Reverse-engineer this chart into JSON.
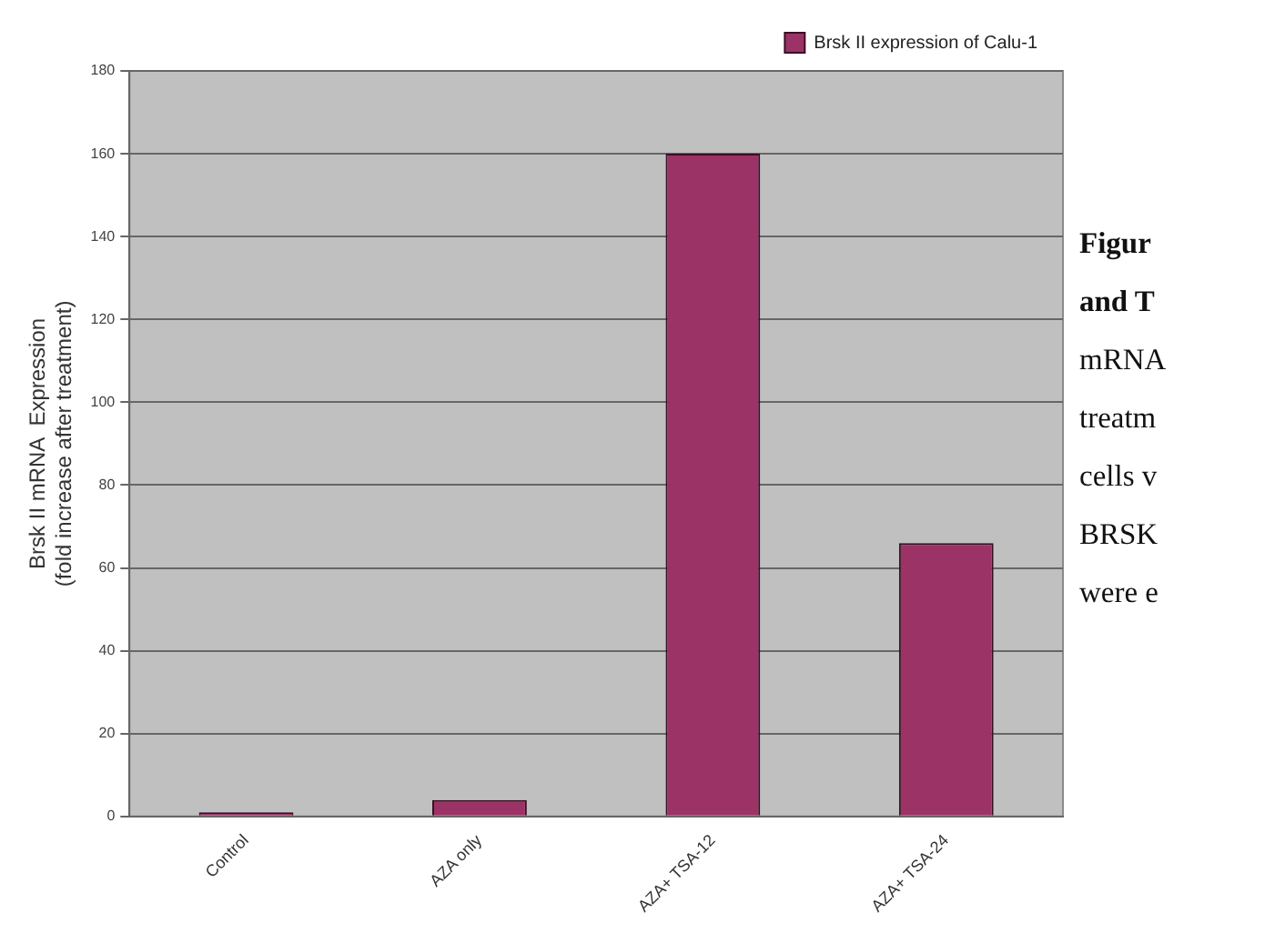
{
  "chart_data": {
    "type": "bar",
    "ylabel": "Brsk II mRNA  Expression\n(fold increase after treatment)",
    "categories": [
      "Control",
      "AZA only",
      "AZA+ TSA-12",
      "AZA+ TSA-24"
    ],
    "series": [
      {
        "name": "Brsk II expression of Calu-1",
        "color": "#9b3366",
        "values": [
          1,
          4,
          160,
          66
        ]
      }
    ],
    "ylim": [
      0,
      180
    ],
    "yticks": [
      0,
      20,
      40,
      60,
      80,
      100,
      120,
      140,
      160,
      180
    ],
    "grid": "y",
    "legend": "top right",
    "annotations": [
      "Figur",
      "and T",
      "mRNA",
      "treatm",
      "cells v",
      "BRSK",
      "were e"
    ]
  }
}
